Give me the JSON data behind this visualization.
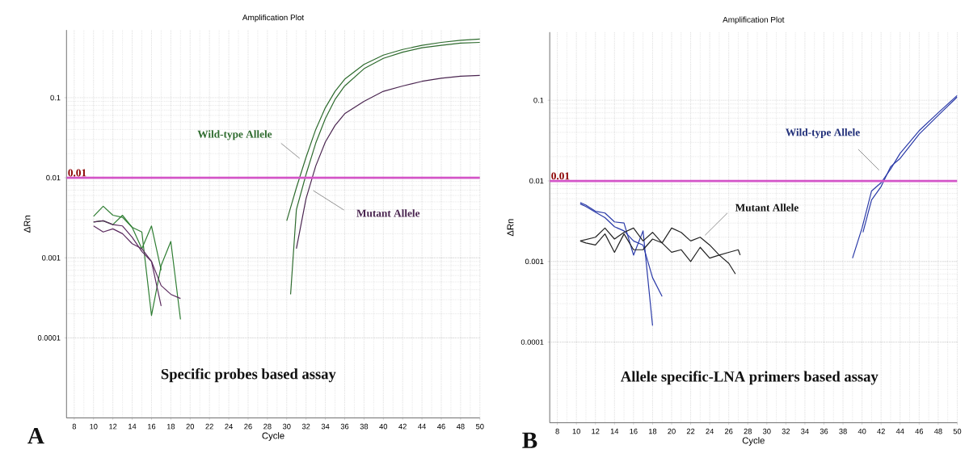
{
  "chart_data": [
    {
      "type": "line",
      "title": "Amplification Plot",
      "xlabel": "Cycle",
      "ylabel": "ΔRn",
      "log": "y",
      "grid": true,
      "marker": "none",
      "xlim": [
        7.2,
        50
      ],
      "ylim": [
        1e-05,
        0.7
      ],
      "xticks": [
        8,
        10,
        12,
        14,
        16,
        18,
        20,
        22,
        24,
        26,
        28,
        30,
        32,
        34,
        36,
        38,
        40,
        42,
        44,
        46,
        48,
        50
      ],
      "yticks": [
        0.0001,
        0.001,
        0.01,
        0.1
      ],
      "ref_lines": [
        {
          "axis": "y",
          "value": 0.01,
          "label": "0.01",
          "color": "#d455c8"
        }
      ],
      "annotations": [
        "Wild-type Allele",
        "Mutant Allele",
        "Specific probes based assay",
        "A"
      ],
      "series": [
        {
          "color": "#2e6b2e",
          "x": [
            30,
            31,
            32,
            33,
            34,
            35,
            36,
            38,
            40,
            42,
            44,
            46,
            48,
            50
          ],
          "values": [
            0.0029,
            0.0075,
            0.018,
            0.04,
            0.075,
            0.12,
            0.17,
            0.26,
            0.34,
            0.4,
            0.45,
            0.49,
            0.52,
            0.54
          ]
        },
        {
          "color": "#2e6b2e",
          "x": [
            30.4,
            31,
            32,
            33,
            34,
            35,
            36,
            38,
            40,
            42,
            44,
            46,
            48,
            50
          ],
          "values": [
            0.00035,
            0.004,
            0.011,
            0.027,
            0.055,
            0.095,
            0.14,
            0.23,
            0.31,
            0.37,
            0.42,
            0.45,
            0.48,
            0.49
          ]
        },
        {
          "color": "#4a2550",
          "x": [
            31,
            32,
            33,
            34,
            35,
            36,
            38,
            40,
            42,
            44,
            46,
            48,
            50
          ],
          "values": [
            0.0013,
            0.0055,
            0.014,
            0.028,
            0.045,
            0.063,
            0.09,
            0.12,
            0.14,
            0.16,
            0.175,
            0.185,
            0.19
          ]
        },
        {
          "color": "#2e7d32",
          "x": [
            10,
            11,
            12,
            13,
            14,
            15,
            16,
            17,
            18,
            19
          ],
          "values": [
            0.0033,
            0.0044,
            0.0034,
            0.0032,
            0.0024,
            0.0021,
            0.00019,
            0.0008,
            0.0016,
            0.00017
          ]
        },
        {
          "color": "#2e7d32",
          "x": [
            10,
            11,
            12,
            13,
            14,
            15,
            16,
            17
          ],
          "values": [
            0.0028,
            0.0029,
            0.0026,
            0.0034,
            0.0024,
            0.0013,
            0.0025,
            0.0007
          ]
        },
        {
          "color": "#5a2a5e",
          "x": [
            10,
            11,
            12,
            13,
            14,
            15,
            16,
            17,
            18,
            19
          ],
          "values": [
            0.0028,
            0.0029,
            0.0026,
            0.0025,
            0.0018,
            0.0012,
            0.0009,
            0.00045,
            0.00035,
            0.00031
          ]
        },
        {
          "color": "#5a2a5e",
          "x": [
            10,
            11,
            12,
            13,
            14,
            15,
            16,
            17
          ],
          "values": [
            0.0025,
            0.0021,
            0.0023,
            0.002,
            0.0015,
            0.0013,
            0.0009,
            0.00025
          ]
        }
      ]
    },
    {
      "type": "line",
      "title": "Amplification Plot",
      "xlabel": "Cycle",
      "ylabel": "ΔRn",
      "log": "y",
      "grid": true,
      "marker": "none",
      "xlim": [
        7.2,
        50
      ],
      "ylim": [
        1e-05,
        0.7
      ],
      "xticks": [
        8,
        10,
        12,
        14,
        16,
        18,
        20,
        22,
        24,
        26,
        28,
        30,
        32,
        34,
        36,
        38,
        40,
        42,
        44,
        46,
        48,
        50
      ],
      "yticks": [
        0.0001,
        0.001,
        0.01,
        0.1
      ],
      "ref_lines": [
        {
          "axis": "y",
          "value": 0.01,
          "label": "0.01",
          "color": "#d455c8"
        }
      ],
      "annotations": [
        "Wild-type Allele",
        "Mutant Allele",
        "Allele specific-LNA primers based assay",
        "B"
      ],
      "series": [
        {
          "color": "#2a3aa8",
          "x": [
            39,
            40,
            41,
            42,
            43,
            44,
            46,
            48,
            50
          ],
          "values": [
            0.0011,
            0.0026,
            0.0075,
            0.0095,
            0.014,
            0.022,
            0.042,
            0.07,
            0.115
          ]
        },
        {
          "color": "#2a3aa8",
          "x": [
            40.1,
            41,
            42,
            43,
            44,
            46,
            48,
            50
          ],
          "values": [
            0.0023,
            0.0058,
            0.0085,
            0.015,
            0.019,
            0.038,
            0.065,
            0.11
          ]
        },
        {
          "color": "#2a3aa8",
          "x": [
            10.4,
            11,
            12,
            13,
            14,
            15,
            16,
            17,
            18
          ],
          "values": [
            0.0054,
            0.005,
            0.0042,
            0.004,
            0.0031,
            0.003,
            0.0012,
            0.0024,
            0.00016
          ]
        },
        {
          "color": "#2a3aa8",
          "x": [
            10.4,
            11,
            12,
            13,
            14,
            15,
            16,
            17,
            18,
            19
          ],
          "values": [
            0.0052,
            0.0048,
            0.0041,
            0.0035,
            0.0027,
            0.0024,
            0.0018,
            0.0016,
            0.00063,
            0.00037
          ]
        },
        {
          "color": "#222222",
          "x": [
            10.4,
            12,
            13,
            14,
            15,
            16,
            17,
            18,
            19,
            20,
            21,
            22,
            23,
            24,
            25,
            26,
            26.7
          ],
          "values": [
            0.0018,
            0.002,
            0.0026,
            0.0019,
            0.0023,
            0.0026,
            0.0018,
            0.0023,
            0.0017,
            0.0026,
            0.0023,
            0.0018,
            0.002,
            0.0016,
            0.0012,
            0.00095,
            0.0007
          ]
        },
        {
          "color": "#222222",
          "x": [
            10.4,
            11,
            12,
            13,
            14,
            15,
            16,
            17,
            18,
            19,
            20,
            21,
            22,
            23,
            24,
            25,
            26,
            27,
            27.2
          ],
          "values": [
            0.0018,
            0.0017,
            0.0016,
            0.0022,
            0.0013,
            0.0022,
            0.0014,
            0.0014,
            0.0019,
            0.0017,
            0.0013,
            0.0014,
            0.001,
            0.0015,
            0.0011,
            0.0012,
            0.0013,
            0.0014,
            0.0012
          ]
        }
      ]
    }
  ]
}
